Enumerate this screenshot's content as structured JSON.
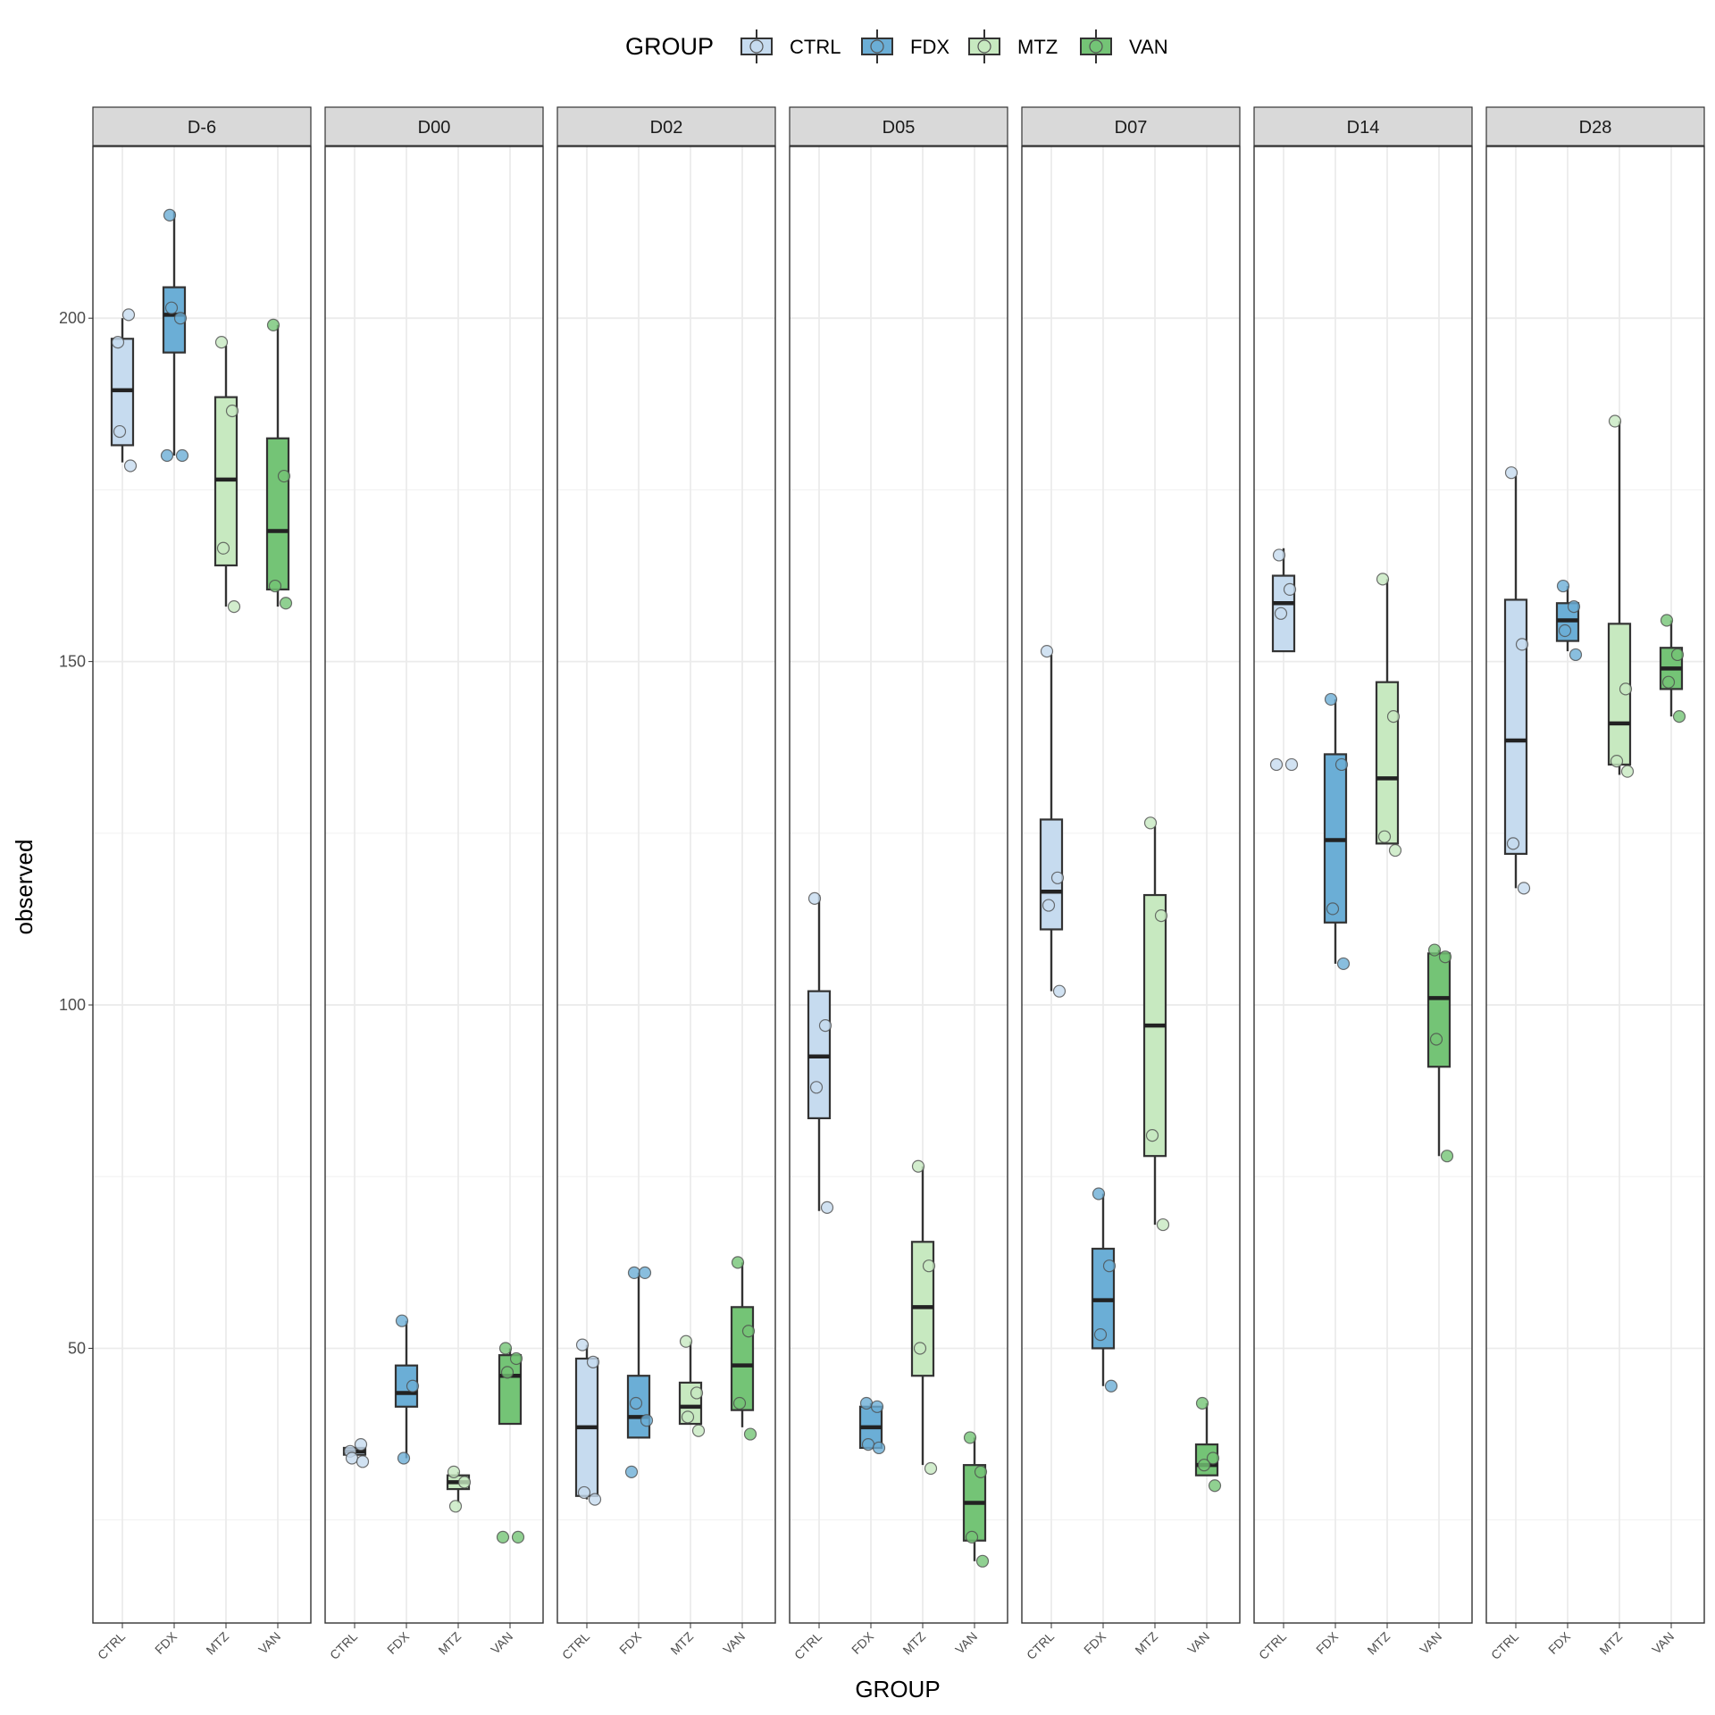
{
  "chart_data": {
    "type": "boxplot",
    "title": "",
    "xlabel": "GROUP",
    "ylabel": "observed",
    "ylim": [
      10,
      225
    ],
    "y_ticks": [
      50,
      100,
      150,
      200
    ],
    "grid": true,
    "legend": {
      "title": "GROUP",
      "placement": "top",
      "entries": [
        {
          "label": "CTRL",
          "color": "#c6dbef"
        },
        {
          "label": "FDX",
          "color": "#6baed6"
        },
        {
          "label": "MTZ",
          "color": "#c7e9c0"
        },
        {
          "label": "VAN",
          "color": "#74c476"
        }
      ]
    },
    "groups": [
      "CTRL",
      "FDX",
      "MTZ",
      "VAN"
    ],
    "panels": [
      {
        "label": "D-6",
        "boxes": [
          {
            "group": "CTRL",
            "q1": 181.5,
            "median": 189.5,
            "q3": 197,
            "lower": 179,
            "upper": 200,
            "points": [
              196.5,
              200.5,
              183.5,
              178.5
            ]
          },
          {
            "group": "FDX",
            "q1": 195,
            "median": 200.5,
            "q3": 204.5,
            "lower": 180,
            "upper": 215.5,
            "points": [
              215,
              200,
              201.5,
              180,
              180
            ]
          },
          {
            "group": "MTZ",
            "q1": 164,
            "median": 176.5,
            "q3": 188.5,
            "lower": 158,
            "upper": 196,
            "points": [
              196.5,
              186.5,
              166.5,
              158
            ]
          },
          {
            "group": "VAN",
            "q1": 160.5,
            "median": 169,
            "q3": 182.5,
            "lower": 158,
            "upper": 199,
            "points": [
              199,
              177,
              161,
              158.5
            ]
          }
        ]
      },
      {
        "label": "D00",
        "boxes": [
          {
            "group": "CTRL",
            "q1": 34.5,
            "median": 35,
            "q3": 35.5,
            "lower": 34.5,
            "upper": 35.5,
            "points": [
              35,
              36,
              34,
              33.5
            ]
          },
          {
            "group": "FDX",
            "q1": 41.5,
            "median": 43.5,
            "q3": 47.5,
            "lower": 34,
            "upper": 54,
            "points": [
              54,
              44.5,
              34
            ]
          },
          {
            "group": "MTZ",
            "q1": 29.5,
            "median": 30.5,
            "q3": 31.5,
            "lower": 27.5,
            "upper": 32,
            "points": [
              32,
              30.5,
              27
            ]
          },
          {
            "group": "VAN",
            "q1": 39,
            "median": 46,
            "q3": 49,
            "lower": 39,
            "upper": 50,
            "points": [
              50,
              48.5,
              46.5,
              22.5,
              22.5
            ]
          }
        ]
      },
      {
        "label": "D02",
        "boxes": [
          {
            "group": "CTRL",
            "q1": 28.5,
            "median": 38.5,
            "q3": 48.5,
            "lower": 28,
            "upper": 50.5,
            "points": [
              50.5,
              48,
              29,
              28
            ]
          },
          {
            "group": "FDX",
            "q1": 37,
            "median": 40,
            "q3": 46,
            "lower": 37,
            "upper": 61,
            "points": [
              61,
              61,
              42,
              39.5,
              32
            ]
          },
          {
            "group": "MTZ",
            "q1": 39,
            "median": 41.5,
            "q3": 45,
            "lower": 39,
            "upper": 51,
            "points": [
              51,
              43.5,
              40,
              38
            ]
          },
          {
            "group": "VAN",
            "q1": 41,
            "median": 47.5,
            "q3": 56,
            "lower": 38.5,
            "upper": 62.5,
            "points": [
              62.5,
              52.5,
              42,
              37.5
            ]
          }
        ]
      },
      {
        "label": "D05",
        "boxes": [
          {
            "group": "CTRL",
            "q1": 83.5,
            "median": 92.5,
            "q3": 102,
            "lower": 70,
            "upper": 116,
            "points": [
              115.5,
              97,
              88,
              70.5
            ]
          },
          {
            "group": "FDX",
            "q1": 35.5,
            "median": 38.5,
            "q3": 41.5,
            "lower": 35.5,
            "upper": 42,
            "points": [
              42,
              41.5,
              36,
              35.5
            ]
          },
          {
            "group": "MTZ",
            "q1": 46,
            "median": 56,
            "q3": 65.5,
            "lower": 33,
            "upper": 76.5,
            "points": [
              76.5,
              62,
              50,
              32.5
            ]
          },
          {
            "group": "VAN",
            "q1": 22,
            "median": 27.5,
            "q3": 33,
            "lower": 19,
            "upper": 37,
            "points": [
              37,
              32,
              22.5,
              19
            ]
          }
        ]
      },
      {
        "label": "D07",
        "boxes": [
          {
            "group": "CTRL",
            "q1": 111,
            "median": 116.5,
            "q3": 127,
            "lower": 102,
            "upper": 151,
            "points": [
              151.5,
              118.5,
              114.5,
              102
            ]
          },
          {
            "group": "FDX",
            "q1": 50,
            "median": 57,
            "q3": 64.5,
            "lower": 44.5,
            "upper": 72.5,
            "points": [
              72.5,
              62,
              52,
              44.5
            ]
          },
          {
            "group": "MTZ",
            "q1": 78,
            "median": 97,
            "q3": 116,
            "lower": 68,
            "upper": 126,
            "points": [
              126.5,
              113,
              81,
              68
            ]
          },
          {
            "group": "VAN",
            "q1": 31.5,
            "median": 33,
            "q3": 36,
            "lower": 31.5,
            "upper": 42,
            "points": [
              42,
              34,
              33,
              30
            ]
          }
        ]
      },
      {
        "label": "D14",
        "boxes": [
          {
            "group": "CTRL",
            "q1": 151.5,
            "median": 158.5,
            "q3": 162.5,
            "lower": 151.5,
            "upper": 166.5,
            "points": [
              165.5,
              160.5,
              157,
              135,
              135
            ]
          },
          {
            "group": "FDX",
            "q1": 112,
            "median": 124,
            "q3": 136.5,
            "lower": 106,
            "upper": 144.5,
            "points": [
              144.5,
              135,
              114,
              106
            ]
          },
          {
            "group": "MTZ",
            "q1": 123.5,
            "median": 133,
            "q3": 147,
            "lower": 123.5,
            "upper": 162,
            "points": [
              162,
              142,
              124.5,
              122.5
            ]
          },
          {
            "group": "VAN",
            "q1": 91,
            "median": 101,
            "q3": 107.5,
            "lower": 78,
            "upper": 108,
            "points": [
              108,
              107,
              95,
              78
            ]
          }
        ]
      },
      {
        "label": "D28",
        "boxes": [
          {
            "group": "CTRL",
            "q1": 122,
            "median": 138.5,
            "q3": 159,
            "lower": 117,
            "upper": 177,
            "points": [
              177.5,
              152.5,
              123.5,
              117
            ]
          },
          {
            "group": "FDX",
            "q1": 153,
            "median": 156,
            "q3": 158.5,
            "lower": 151.5,
            "upper": 161,
            "points": [
              161,
              158,
              154.5,
              151
            ]
          },
          {
            "group": "MTZ",
            "q1": 135,
            "median": 141,
            "q3": 155.5,
            "lower": 133.5,
            "upper": 185,
            "points": [
              185,
              146,
              135.5,
              134
            ]
          },
          {
            "group": "VAN",
            "q1": 146,
            "median": 149,
            "q3": 152,
            "lower": 142,
            "upper": 156,
            "points": [
              156,
              151,
              147,
              142
            ]
          }
        ]
      }
    ]
  }
}
